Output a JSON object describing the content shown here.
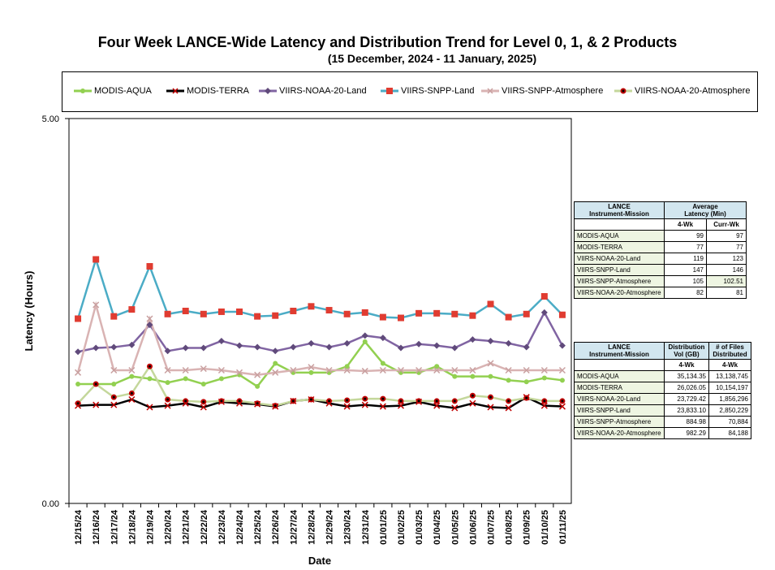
{
  "title": "Four Week LANCE-Wide Latency and Distribution Trend for Level 0, 1, & 2 Products",
  "subtitle": "(15  December,  2024  -  11 January, 2025)",
  "chart_data": {
    "type": "line",
    "title": "Four Week LANCE-Wide Latency and Distribution Trend for Level 0, 1, & 2 Products",
    "xlabel": "Date",
    "ylabel": "Latency (Hours)",
    "ylim": [
      0,
      5
    ],
    "ytick_labels": [
      "0.00",
      "5.00"
    ],
    "categories": [
      "12/15/24",
      "12/16/24",
      "12/17/24",
      "12/18/24",
      "12/19/24",
      "12/20/24",
      "12/21/24",
      "12/22/24",
      "12/23/24",
      "12/24/24",
      "12/25/24",
      "12/26/24",
      "12/27/24",
      "12/28/24",
      "12/29/24",
      "12/30/24",
      "12/31/24",
      "01/01/25",
      "01/02/25",
      "01/03/25",
      "01/04/25",
      "01/05/25",
      "01/06/25",
      "01/07/25",
      "01/08/25",
      "01/09/25",
      "01/10/25",
      "01/11/25"
    ],
    "series": [
      {
        "name": "MODIS-AQUA",
        "color": "#92d050",
        "marker": "circle",
        "values": [
          1.55,
          1.55,
          1.55,
          1.65,
          1.62,
          1.57,
          1.62,
          1.55,
          1.62,
          1.67,
          1.52,
          1.82,
          1.7,
          1.7,
          1.7,
          1.78,
          2.1,
          1.82,
          1.7,
          1.7,
          1.78,
          1.65,
          1.65,
          1.65,
          1.6,
          1.58,
          1.63,
          1.6
        ]
      },
      {
        "name": "MODIS-TERRA",
        "color": "#000000",
        "marker": "x",
        "values": [
          1.27,
          1.28,
          1.28,
          1.35,
          1.25,
          1.27,
          1.3,
          1.25,
          1.32,
          1.3,
          1.29,
          1.26,
          1.33,
          1.35,
          1.3,
          1.26,
          1.28,
          1.26,
          1.27,
          1.32,
          1.27,
          1.24,
          1.3,
          1.25,
          1.24,
          1.38,
          1.27,
          1.26
        ]
      },
      {
        "name": "VIIRS-NOAA-20-Land",
        "color": "#8064a2",
        "marker": "diamond",
        "values": [
          1.97,
          2.02,
          2.03,
          2.06,
          2.32,
          1.98,
          2.02,
          2.02,
          2.11,
          2.05,
          2.03,
          1.98,
          2.03,
          2.08,
          2.03,
          2.08,
          2.18,
          2.15,
          2.02,
          2.07,
          2.05,
          2.02,
          2.13,
          2.11,
          2.08,
          2.03,
          2.48,
          2.05
        ]
      },
      {
        "name": "VIIRS-SNPP-Land",
        "color": "#4bacc6",
        "marker": "square",
        "values": [
          2.4,
          3.17,
          2.43,
          2.52,
          3.08,
          2.46,
          2.5,
          2.46,
          2.49,
          2.49,
          2.43,
          2.44,
          2.5,
          2.56,
          2.51,
          2.46,
          2.48,
          2.42,
          2.41,
          2.47,
          2.47,
          2.46,
          2.44,
          2.59,
          2.42,
          2.46,
          2.69,
          2.45
        ]
      },
      {
        "name": "VIIRS-SNPP-Atmosphere",
        "color": "#d9b3b3",
        "marker": "x",
        "values": [
          1.7,
          2.58,
          1.73,
          1.73,
          2.4,
          1.73,
          1.73,
          1.75,
          1.73,
          1.7,
          1.67,
          1.7,
          1.73,
          1.77,
          1.73,
          1.73,
          1.72,
          1.73,
          1.73,
          1.73,
          1.73,
          1.73,
          1.73,
          1.82,
          1.73,
          1.73,
          1.73,
          1.73
        ]
      },
      {
        "name": "VIIRS-NOAA-20-Atmosphere",
        "color": "#c4d79b",
        "marker": "dot",
        "values": [
          1.3,
          1.55,
          1.38,
          1.43,
          1.78,
          1.35,
          1.33,
          1.32,
          1.33,
          1.33,
          1.3,
          1.27,
          1.33,
          1.35,
          1.33,
          1.34,
          1.36,
          1.36,
          1.33,
          1.33,
          1.33,
          1.33,
          1.4,
          1.38,
          1.33,
          1.37,
          1.33,
          1.33
        ]
      }
    ]
  },
  "latency_table": {
    "header1": "LANCE",
    "header2": "Instrument-Mission",
    "col_header1": "Average",
    "col_header2": "Latency (Min)",
    "sub_4wk": "4-Wk",
    "sub_curr": "Curr-Wk",
    "rows": [
      {
        "name": "MODIS-AQUA",
        "a": "99",
        "b": "97"
      },
      {
        "name": "MODIS-TERRA",
        "a": "77",
        "b": "77"
      },
      {
        "name": "VIIRS-NOAA-20-Land",
        "a": "119",
        "b": "123"
      },
      {
        "name": "VIIRS-SNPP-Land",
        "a": "147",
        "b": "146"
      },
      {
        "name": "VIIRS-SNPP-Atmosphere",
        "a": "105",
        "b": "102.51"
      },
      {
        "name": "VIIRS-NOAA-20-Atmosphere",
        "a": "82",
        "b": "81"
      }
    ]
  },
  "distribution_table": {
    "header1": "LANCE",
    "header2": "Instrument-Mission",
    "col1_header1": "Distribution",
    "col1_header2": "Vol (GB)",
    "col2_header1": "# of Files",
    "col2_header2": "Distributed",
    "sub_4wk": "4-Wk",
    "rows": [
      {
        "name": "MODIS-AQUA",
        "a": "35,134.35",
        "b": "13,138,745"
      },
      {
        "name": "MODIS-TERRA",
        "a": "26,026.05",
        "b": "10,154,197"
      },
      {
        "name": "VIIRS-NOAA-20-Land",
        "a": "23,729.42",
        "b": "1,856,296"
      },
      {
        "name": "VIIRS-SNPP-Land",
        "a": "23,833.10",
        "b": "2,850,229"
      },
      {
        "name": "VIIRS-SNPP-Atmosphere",
        "a": "884.98",
        "b": "70,884"
      },
      {
        "name": "VIIRS-NOAA-20-Atmosphere",
        "a": "982.29",
        "b": "84,188"
      }
    ]
  }
}
